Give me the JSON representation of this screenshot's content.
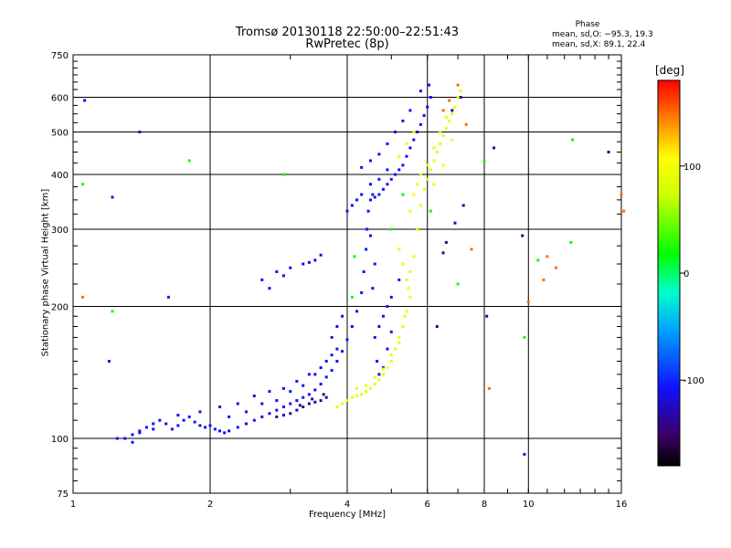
{
  "chart_data": {
    "type": "scatter",
    "title": "Tromsø 20130118 22:50:00–22:51:43",
    "subtitle": "RwPretec (8p)",
    "xlabel": "Frequency [MHz]",
    "ylabel": "Stationary phase Virtual Height [km]",
    "x_scale": "log",
    "y_scale": "log",
    "xlim": [
      1,
      16
    ],
    "ylim": [
      75,
      750
    ],
    "x_ticks": [
      1,
      2,
      4,
      6,
      8,
      10,
      16
    ],
    "x_tick_labels": [
      "1",
      "2",
      "4",
      "6",
      "8",
      "10",
      "16"
    ],
    "y_ticks": [
      75,
      100,
      200,
      300,
      400,
      500,
      600,
      750
    ],
    "y_tick_labels": [
      "75",
      "100",
      "200",
      "300",
      "400",
      "500",
      "600",
      "750"
    ],
    "grid": true,
    "colorbar": {
      "label": "[deg]",
      "range": [
        -180,
        180
      ],
      "ticks": [
        100,
        0,
        -100
      ],
      "tick_labels": [
        "100",
        "0",
        "-100"
      ]
    },
    "stats": {
      "title": "Phase",
      "o_mode": "mean, sd,O: −95.3, 19.3",
      "x_mode": "mean, sd,X:  89.1, 22.4"
    },
    "series": [
      {
        "mode": "O",
        "phase": -110,
        "points": [
          [
            1.25,
            100
          ],
          [
            1.3,
            100
          ],
          [
            1.35,
            102
          ],
          [
            1.4,
            104
          ],
          [
            1.45,
            106
          ],
          [
            1.5,
            108
          ],
          [
            1.55,
            110
          ],
          [
            1.6,
            108
          ],
          [
            1.65,
            105
          ],
          [
            1.7,
            107
          ],
          [
            1.75,
            110
          ],
          [
            1.8,
            112
          ],
          [
            1.85,
            109
          ],
          [
            1.9,
            107
          ],
          [
            1.95,
            106
          ],
          [
            2.0,
            107
          ],
          [
            2.05,
            105
          ],
          [
            2.1,
            104
          ],
          [
            2.15,
            103
          ],
          [
            2.2,
            104
          ],
          [
            2.3,
            106
          ],
          [
            2.4,
            108
          ],
          [
            2.5,
            110
          ],
          [
            2.6,
            112
          ],
          [
            2.7,
            114
          ],
          [
            2.8,
            116
          ],
          [
            2.9,
            118
          ],
          [
            3.0,
            120
          ],
          [
            3.1,
            122
          ],
          [
            3.2,
            124
          ],
          [
            3.3,
            126
          ],
          [
            3.4,
            129
          ],
          [
            3.5,
            133
          ],
          [
            3.6,
            138
          ],
          [
            3.7,
            143
          ],
          [
            3.8,
            150
          ],
          [
            3.9,
            158
          ],
          [
            4.0,
            168
          ],
          [
            4.1,
            180
          ],
          [
            4.2,
            195
          ],
          [
            4.3,
            215
          ],
          [
            4.35,
            240
          ],
          [
            4.4,
            270
          ],
          [
            4.42,
            300
          ],
          [
            4.45,
            330
          ],
          [
            4.5,
            350
          ],
          [
            4.55,
            360
          ],
          [
            4.6,
            355
          ],
          [
            4.7,
            360
          ],
          [
            4.8,
            370
          ],
          [
            4.9,
            380
          ],
          [
            5.0,
            390
          ],
          [
            5.1,
            400
          ],
          [
            5.2,
            410
          ],
          [
            5.3,
            420
          ],
          [
            5.4,
            440
          ],
          [
            5.5,
            460
          ],
          [
            5.6,
            480
          ],
          [
            5.7,
            500
          ],
          [
            5.8,
            520
          ],
          [
            5.9,
            545
          ],
          [
            6.0,
            570
          ],
          [
            6.1,
            600
          ],
          [
            4.0,
            330
          ],
          [
            4.1,
            340
          ],
          [
            4.2,
            350
          ],
          [
            4.3,
            360
          ],
          [
            4.5,
            380
          ],
          [
            4.7,
            390
          ],
          [
            4.9,
            410
          ],
          [
            2.6,
            230
          ],
          [
            2.8,
            240
          ],
          [
            3.0,
            245
          ],
          [
            3.2,
            250
          ],
          [
            3.4,
            255
          ],
          [
            3.5,
            262
          ],
          [
            2.7,
            220
          ],
          [
            2.9,
            235
          ],
          [
            3.3,
            252
          ],
          [
            4.6,
            170
          ],
          [
            4.7,
            180
          ],
          [
            4.8,
            190
          ],
          [
            4.9,
            200
          ],
          [
            5.0,
            210
          ],
          [
            5.2,
            230
          ],
          [
            4.55,
            220
          ],
          [
            4.6,
            250
          ],
          [
            4.5,
            290
          ],
          [
            4.65,
            150
          ],
          [
            4.7,
            140
          ],
          [
            4.8,
            145
          ],
          [
            4.9,
            160
          ],
          [
            5.0,
            175
          ],
          [
            3.7,
            170
          ],
          [
            3.8,
            180
          ],
          [
            3.9,
            190
          ],
          [
            3.8,
            160
          ],
          [
            3.7,
            155
          ],
          [
            3.6,
            150
          ],
          [
            3.5,
            145
          ],
          [
            3.3,
            140
          ],
          [
            3.1,
            135
          ],
          [
            2.9,
            130
          ],
          [
            2.7,
            128
          ],
          [
            2.5,
            125
          ],
          [
            2.3,
            120
          ],
          [
            2.1,
            118
          ],
          [
            1.9,
            115
          ],
          [
            1.7,
            113
          ],
          [
            1.5,
            105
          ],
          [
            1.4,
            103
          ],
          [
            1.35,
            98
          ],
          [
            2.2,
            112
          ],
          [
            2.4,
            115
          ],
          [
            2.6,
            120
          ],
          [
            2.8,
            122
          ],
          [
            3.0,
            128
          ],
          [
            3.2,
            132
          ],
          [
            3.4,
            140
          ],
          [
            4.3,
            415
          ],
          [
            4.5,
            430
          ],
          [
            4.7,
            445
          ],
          [
            4.9,
            470
          ],
          [
            5.1,
            500
          ],
          [
            5.3,
            530
          ],
          [
            5.5,
            560
          ],
          [
            1.06,
            590
          ],
          [
            1.22,
            355
          ],
          [
            1.4,
            500
          ],
          [
            1.62,
            210
          ],
          [
            5.8,
            620
          ],
          [
            6.05,
            640
          ],
          [
            9.8,
            92
          ],
          [
            1.2,
            150
          ]
        ]
      },
      {
        "mode": "O-low-phase",
        "phase": -140,
        "points": [
          [
            3.0,
            114
          ],
          [
            3.1,
            116
          ],
          [
            3.2,
            118
          ],
          [
            3.3,
            120
          ],
          [
            3.4,
            121
          ],
          [
            3.5,
            122
          ],
          [
            3.6,
            124
          ],
          [
            2.9,
            113
          ],
          [
            2.8,
            112
          ],
          [
            3.15,
            119
          ],
          [
            3.35,
            123
          ],
          [
            3.55,
            126
          ],
          [
            6.9,
            310
          ],
          [
            6.5,
            265
          ],
          [
            7.1,
            600
          ],
          [
            6.8,
            560
          ],
          [
            9.7,
            290
          ],
          [
            8.1,
            190
          ],
          [
            7.2,
            340
          ],
          [
            15,
            450
          ],
          [
            8.4,
            460
          ],
          [
            6.3,
            180
          ],
          [
            6.6,
            280
          ]
        ]
      },
      {
        "mode": "X",
        "phase": 90,
        "points": [
          [
            3.8,
            118
          ],
          [
            3.9,
            120
          ],
          [
            4.0,
            122
          ],
          [
            4.1,
            124
          ],
          [
            4.2,
            125
          ],
          [
            4.3,
            126
          ],
          [
            4.4,
            128
          ],
          [
            4.5,
            130
          ],
          [
            4.6,
            133
          ],
          [
            4.7,
            136
          ],
          [
            4.8,
            140
          ],
          [
            4.9,
            145
          ],
          [
            5.0,
            150
          ],
          [
            5.1,
            160
          ],
          [
            5.2,
            170
          ],
          [
            5.3,
            180
          ],
          [
            5.4,
            195
          ],
          [
            5.5,
            210
          ],
          [
            5.4,
            230
          ],
          [
            5.3,
            250
          ],
          [
            5.2,
            270
          ],
          [
            5.5,
            240
          ],
          [
            5.6,
            260
          ],
          [
            5.7,
            300
          ],
          [
            5.8,
            340
          ],
          [
            5.9,
            370
          ],
          [
            6.0,
            390
          ],
          [
            6.1,
            410
          ],
          [
            6.2,
            430
          ],
          [
            6.3,
            450
          ],
          [
            6.4,
            470
          ],
          [
            6.5,
            490
          ],
          [
            6.6,
            510
          ],
          [
            6.7,
            530
          ],
          [
            6.8,
            550
          ],
          [
            6.9,
            570
          ],
          [
            7.0,
            600
          ],
          [
            7.1,
            620
          ],
          [
            5.5,
            330
          ],
          [
            5.6,
            360
          ],
          [
            5.7,
            380
          ],
          [
            5.8,
            400
          ],
          [
            6.0,
            420
          ],
          [
            6.2,
            460
          ],
          [
            6.4,
            500
          ],
          [
            6.6,
            540
          ],
          [
            5.2,
            440
          ],
          [
            5.4,
            470
          ],
          [
            5.6,
            500
          ],
          [
            4.2,
            130
          ],
          [
            4.4,
            132
          ],
          [
            4.6,
            138
          ],
          [
            4.8,
            144
          ],
          [
            5.0,
            155
          ],
          [
            5.2,
            165
          ],
          [
            5.35,
            190
          ],
          [
            5.45,
            220
          ],
          [
            6.2,
            380
          ],
          [
            6.5,
            420
          ],
          [
            6.8,
            480
          ]
        ]
      },
      {
        "mode": "X-high-phase",
        "phase": 150,
        "points": [
          [
            6.5,
            560
          ],
          [
            6.7,
            590
          ],
          [
            7.0,
            640
          ],
          [
            7.3,
            520
          ],
          [
            1.05,
            210
          ],
          [
            11,
            260
          ],
          [
            11.5,
            245
          ],
          [
            16,
            360
          ],
          [
            16.2,
            330
          ],
          [
            8.2,
            130
          ],
          [
            10,
            205
          ],
          [
            7.5,
            270
          ],
          [
            10.8,
            230
          ]
        ]
      },
      {
        "mode": "scattered",
        "phase": 20,
        "points": [
          [
            1.05,
            380
          ],
          [
            1.22,
            195
          ],
          [
            5.0,
            300
          ],
          [
            5.3,
            360
          ],
          [
            6.1,
            330
          ],
          [
            4.1,
            210
          ],
          [
            4.15,
            260
          ],
          [
            12.5,
            480
          ],
          [
            12.4,
            280
          ],
          [
            9.8,
            170
          ],
          [
            10.5,
            255
          ],
          [
            8.0,
            430
          ],
          [
            7.0,
            225
          ],
          [
            2.9,
            400
          ],
          [
            1.8,
            430
          ]
        ]
      }
    ]
  }
}
